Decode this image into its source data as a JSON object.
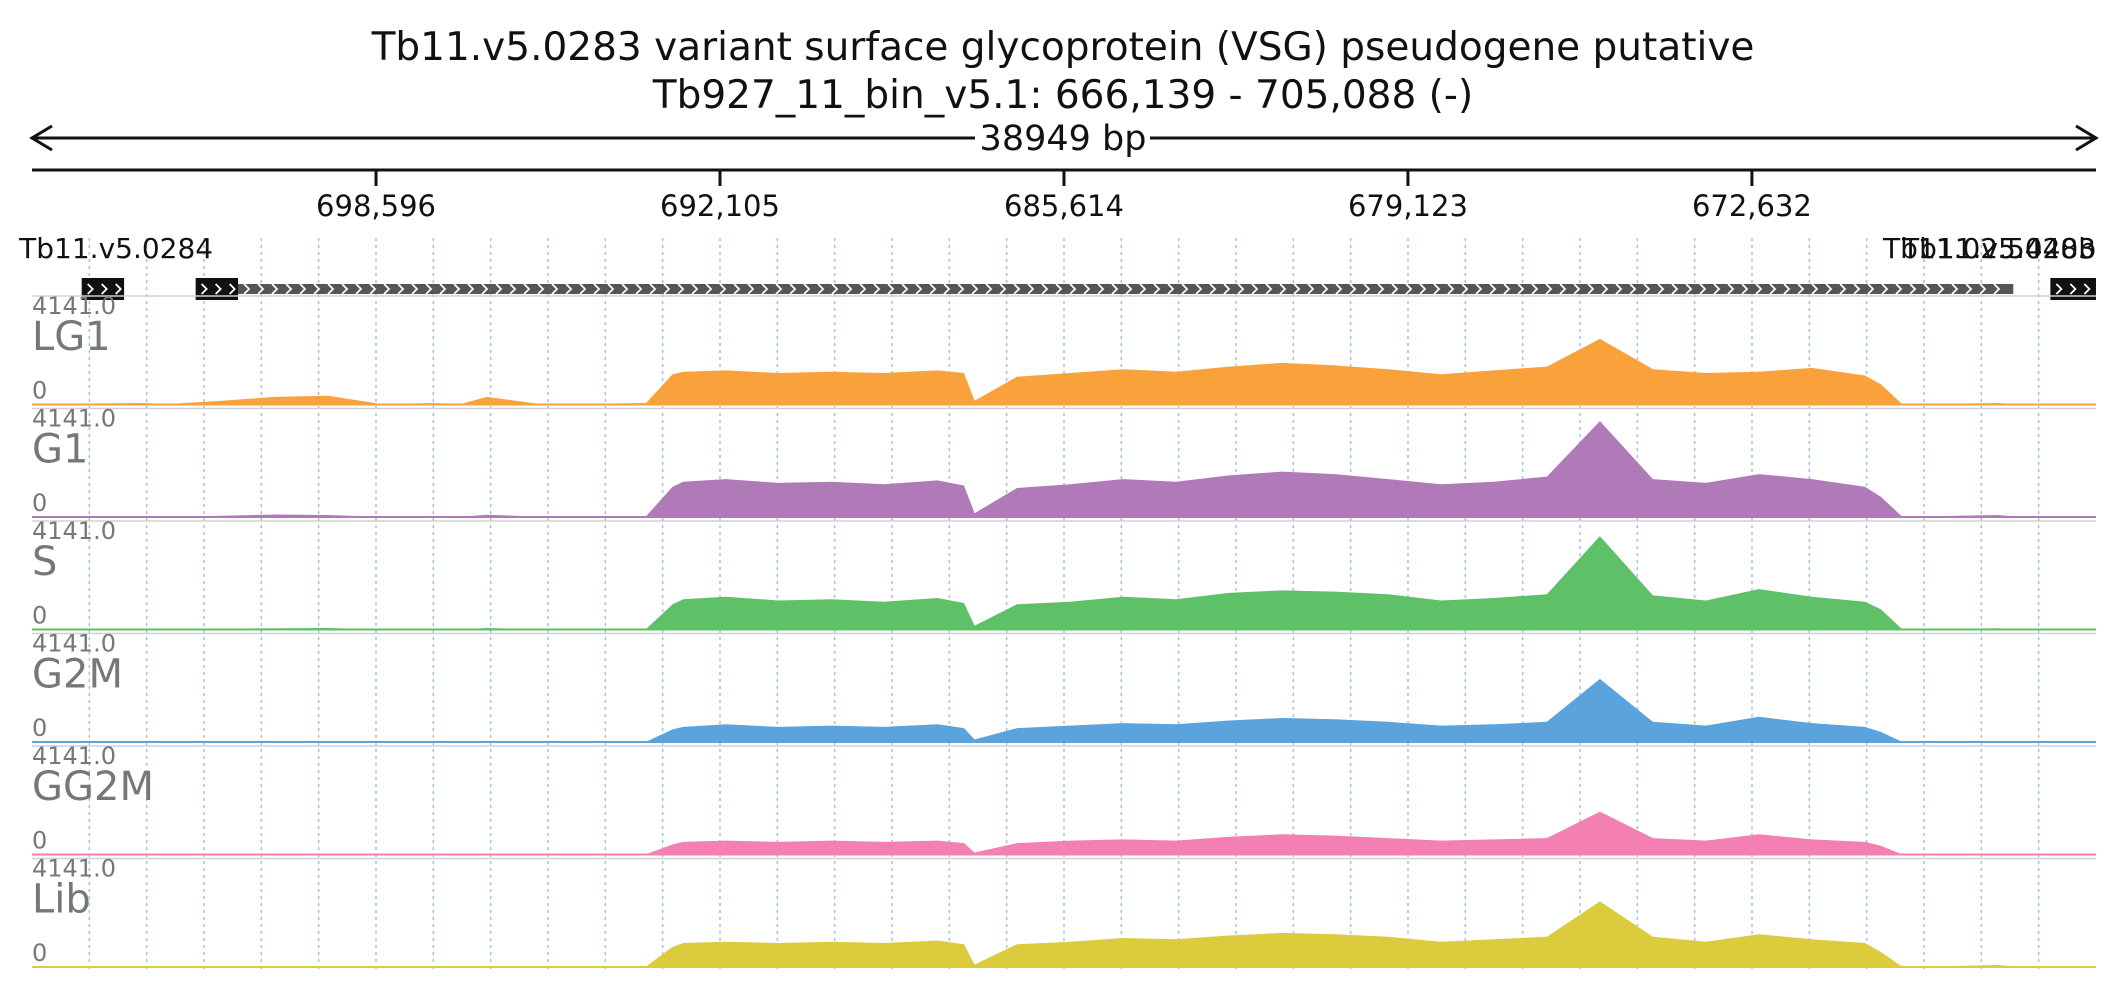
{
  "title_line1": "Tb11.v5.0283  variant surface glycoprotein (VSG) pseudogene  putative",
  "title_line2": "Tb927_11_bin_v5.1: 666,139 - 705,088 (-)",
  "span_label": "38949 bp",
  "genes": [
    {
      "name": "Tb11.v5.0284",
      "start": 704150,
      "end": 703350,
      "label_at": 703500
    },
    {
      "name": "",
      "start": 702000,
      "end": 701200
    },
    {
      "name": "Tb11.v5.0283",
      "start": 701200,
      "end": 667700
    },
    {
      "name": "Tb11.02.5440b",
      "start": 667000,
      "end": 666139
    }
  ],
  "chart_data": {
    "type": "area",
    "title": "Tb11.v5.0283  variant surface glycoprotein (VSG) pseudogene  putative",
    "subtitle": "Tb927_11_bin_v5.1: 666,139 - 705,088 (-)",
    "xlabel": "",
    "ylabel": "",
    "x_direction": "reversed (minus strand)",
    "xlim": [
      705088,
      666139
    ],
    "x_ticks": [
      698596,
      692105,
      685614,
      679123,
      672632
    ],
    "x_tick_labels": [
      "698,596",
      "692,105",
      "685,614",
      "679,123",
      "672,632"
    ],
    "grid": "vertical dotted lines",
    "ylim": [
      0,
      4141.0
    ],
    "y_max_label": "4141.0",
    "y_min_label": "0",
    "x": [
      705088,
      704000,
      703000,
      702500,
      701500,
      700500,
      699500,
      698500,
      697500,
      697000,
      696500,
      695500,
      694500,
      693500,
      693000,
      692800,
      692000,
      691000,
      690000,
      689000,
      688000,
      687500,
      687300,
      686500,
      685500,
      684500,
      683500,
      682500,
      681500,
      680500,
      679500,
      678500,
      677500,
      676500,
      675500,
      674500,
      673500,
      672500,
      671500,
      670500,
      670200,
      669800,
      669000,
      668000,
      667500
    ],
    "series": [
      {
        "name": "LG1",
        "color": "#f9a23b",
        "values": [
          0,
          40,
          60,
          20,
          150,
          300,
          350,
          20,
          60,
          20,
          300,
          20,
          30,
          60,
          1200,
          1300,
          1350,
          1250,
          1300,
          1250,
          1350,
          1250,
          150,
          1100,
          1250,
          1400,
          1300,
          1500,
          1650,
          1550,
          1400,
          1200,
          1350,
          1500,
          2600,
          1400,
          1250,
          1300,
          1450,
          1150,
          800,
          20,
          30,
          60,
          0
        ]
      },
      {
        "name": "G1",
        "color": "#b07ab8",
        "values": [
          0,
          20,
          40,
          10,
          50,
          100,
          80,
          10,
          40,
          10,
          90,
          10,
          20,
          30,
          1200,
          1400,
          1500,
          1350,
          1400,
          1300,
          1450,
          1250,
          150,
          1150,
          1300,
          1500,
          1400,
          1650,
          1800,
          1700,
          1500,
          1300,
          1400,
          1600,
          3800,
          1500,
          1350,
          1700,
          1500,
          1200,
          800,
          20,
          40,
          80,
          0
        ]
      },
      {
        "name": "S",
        "color": "#5fc167",
        "values": [
          0,
          20,
          20,
          10,
          30,
          50,
          60,
          10,
          30,
          10,
          60,
          10,
          10,
          20,
          1000,
          1200,
          1300,
          1150,
          1200,
          1100,
          1250,
          1050,
          150,
          1000,
          1100,
          1300,
          1200,
          1450,
          1550,
          1500,
          1400,
          1150,
          1250,
          1400,
          3700,
          1350,
          1150,
          1600,
          1300,
          1100,
          800,
          20,
          30,
          50,
          0
        ]
      },
      {
        "name": "G2M",
        "color": "#5aa3dc",
        "values": [
          0,
          10,
          10,
          5,
          20,
          30,
          30,
          5,
          20,
          5,
          30,
          5,
          10,
          10,
          500,
          600,
          700,
          600,
          650,
          600,
          700,
          550,
          100,
          550,
          650,
          750,
          700,
          850,
          950,
          900,
          800,
          650,
          700,
          800,
          2500,
          800,
          650,
          1000,
          750,
          600,
          400,
          10,
          20,
          40,
          0
        ]
      },
      {
        "name": "GG2M",
        "color": "#f47fb2",
        "values": [
          0,
          10,
          10,
          5,
          20,
          20,
          20,
          5,
          10,
          5,
          20,
          5,
          10,
          10,
          400,
          500,
          550,
          500,
          550,
          500,
          550,
          450,
          80,
          450,
          550,
          600,
          550,
          700,
          800,
          750,
          650,
          550,
          600,
          650,
          1700,
          650,
          550,
          800,
          600,
          500,
          350,
          10,
          20,
          30,
          0
        ]
      },
      {
        "name": "Lib",
        "color": "#dccb3d",
        "values": [
          0,
          20,
          20,
          10,
          30,
          40,
          40,
          10,
          20,
          10,
          40,
          10,
          20,
          20,
          800,
          950,
          1000,
          950,
          1000,
          950,
          1050,
          900,
          100,
          900,
          1000,
          1150,
          1100,
          1250,
          1350,
          1300,
          1200,
          1000,
          1100,
          1200,
          2600,
          1200,
          1000,
          1300,
          1100,
          950,
          600,
          20,
          30,
          80,
          0
        ]
      }
    ]
  }
}
